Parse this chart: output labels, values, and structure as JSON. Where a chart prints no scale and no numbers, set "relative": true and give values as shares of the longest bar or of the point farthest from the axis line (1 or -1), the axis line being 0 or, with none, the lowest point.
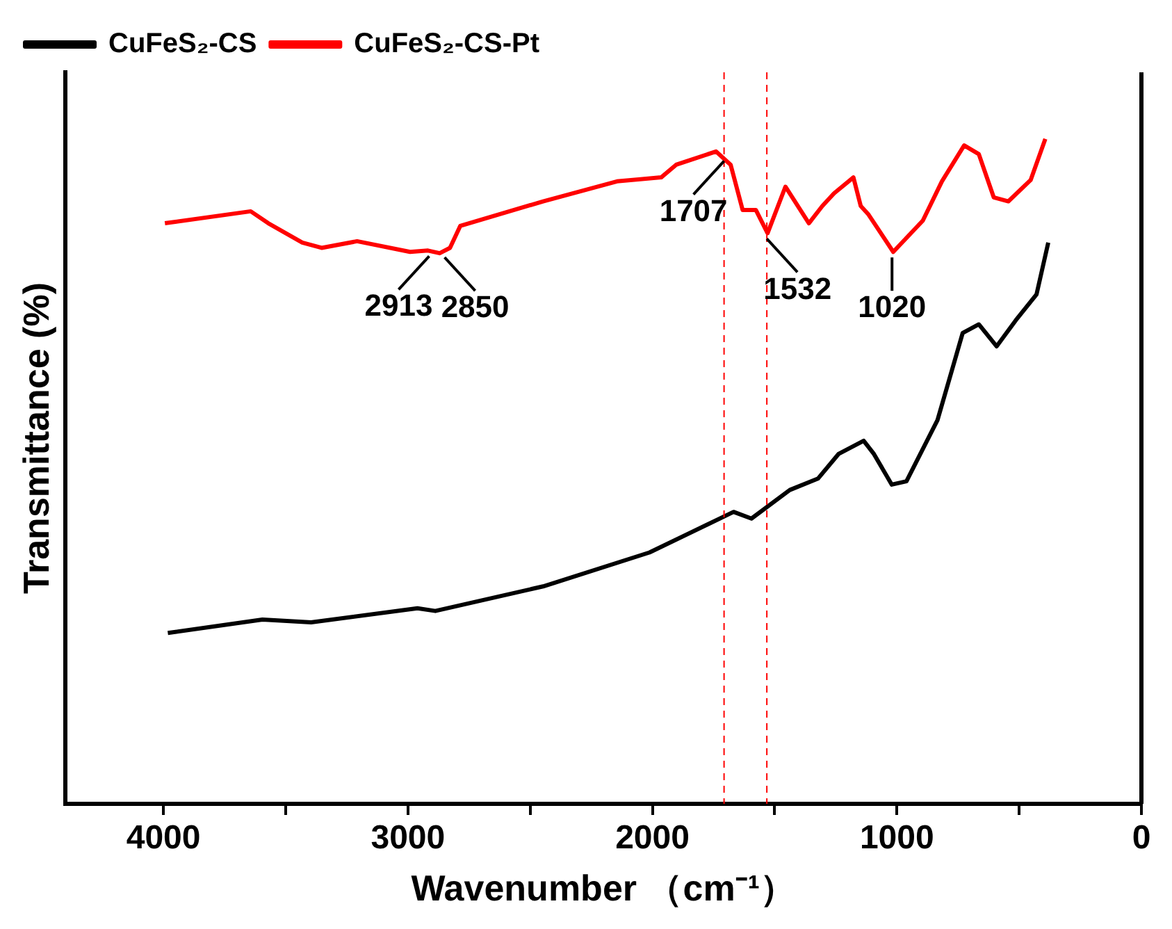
{
  "chart_data": {
    "type": "line",
    "xlabel": "Wavenumber （cm⁻¹）",
    "ylabel": "Transmittance (%)",
    "relative": true,
    "xlim": [
      4400,
      0
    ],
    "xticks": [
      4000,
      {
        "value": 3500,
        "label": null
      },
      3000,
      {
        "value": 2500,
        "label": null
      },
      2000,
      {
        "value": 1500,
        "label": null
      },
      1000,
      {
        "value": 500,
        "label": null
      },
      0
    ],
    "grid": false,
    "legend": "top left",
    "marker": "none",
    "line_style": "solid",
    "series": [
      {
        "name": "CuFeS₂-CS",
        "color": "#000000",
        "x": [
          3982,
          3595,
          3396,
          2961,
          2888,
          2447,
          2012,
          1668,
          1595,
          1438,
          1323,
          1239,
          1136,
          1094,
          1021,
          961,
          834,
          731,
          665,
          592,
          514,
          429,
          381
        ],
        "values": [
          0.257,
          0.277,
          0.273,
          0.294,
          0.29,
          0.327,
          0.378,
          0.439,
          0.429,
          0.472,
          0.489,
          0.526,
          0.546,
          0.526,
          0.48,
          0.485,
          0.577,
          0.708,
          0.721,
          0.688,
          0.727,
          0.766,
          0.844
        ]
      },
      {
        "name": "CuFeS₂-CS-Pt",
        "color": "#ff0000",
        "x": [
          3994,
          3643,
          3571,
          3432,
          3353,
          3208,
          2991,
          2918,
          2870,
          2828,
          2786,
          2447,
          2145,
          1964,
          1903,
          1740,
          1680,
          1631,
          1577,
          1529,
          1456,
          1360,
          1305,
          1257,
          1178,
          1148,
          1118,
          1015,
          894,
          816,
          725,
          665,
          604,
          544,
          453,
          393
        ],
        "values": [
          0.873,
          0.891,
          0.873,
          0.844,
          0.836,
          0.846,
          0.83,
          0.832,
          0.828,
          0.836,
          0.869,
          0.906,
          0.936,
          0.942,
          0.961,
          0.981,
          0.961,
          0.893,
          0.893,
          0.858,
          0.928,
          0.873,
          0.899,
          0.918,
          0.942,
          0.899,
          0.887,
          0.83,
          0.877,
          0.936,
          0.99,
          0.977,
          0.912,
          0.906,
          0.938,
          1.0
        ]
      }
    ],
    "ref_lines": [
      {
        "axis": "x",
        "value": 1707,
        "color": "#ff0000",
        "line_style": "dashed"
      },
      {
        "axis": "x",
        "value": 1532,
        "color": "#ff0000",
        "line_style": "dashed"
      }
    ],
    "annotations": [
      {
        "text": "2913",
        "x": 2913,
        "y": 0.832
      },
      {
        "text": "2850",
        "x": 2850,
        "y": 0.83
      },
      {
        "text": "1707",
        "x": 1707,
        "y": 0.975
      },
      {
        "text": "1532",
        "x": 1532,
        "y": 0.858
      },
      {
        "text": "1020",
        "x": 1020,
        "y": 0.83
      }
    ]
  }
}
